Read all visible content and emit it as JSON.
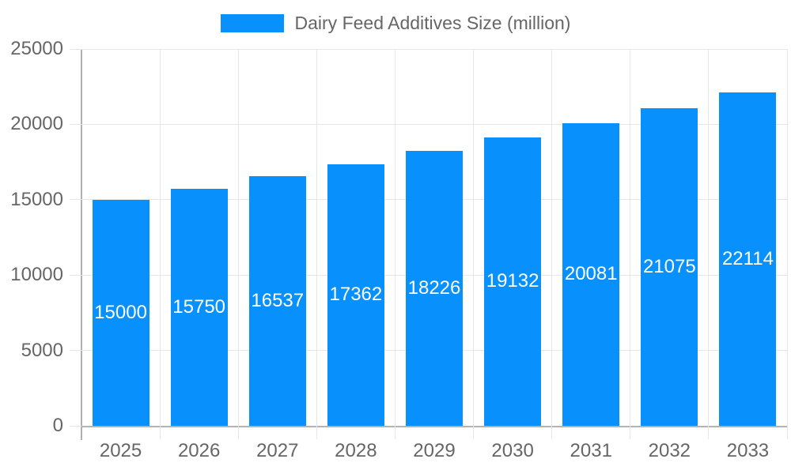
{
  "chart_data": {
    "type": "bar",
    "title": "Dairy Feed Additives Size (million)",
    "legend": {
      "label": "Dairy Feed Additives Size (million)",
      "position": "top"
    },
    "categories": [
      "2025",
      "2026",
      "2027",
      "2028",
      "2029",
      "2030",
      "2031",
      "2032",
      "2033"
    ],
    "values": [
      15000,
      15750,
      16537,
      17362,
      18226,
      19132,
      20081,
      21075,
      22114
    ],
    "xlabel": "",
    "ylabel": "",
    "ylim": [
      0,
      25000
    ],
    "yticks": [
      0,
      5000,
      10000,
      15000,
      20000,
      25000
    ],
    "grid": true,
    "bar_color": "#0890fc",
    "bar_label_color": "#ffffff",
    "grid_color": "#e6e6e6",
    "axis_color": "#b0b0b0",
    "tick_label_color": "#666666"
  }
}
